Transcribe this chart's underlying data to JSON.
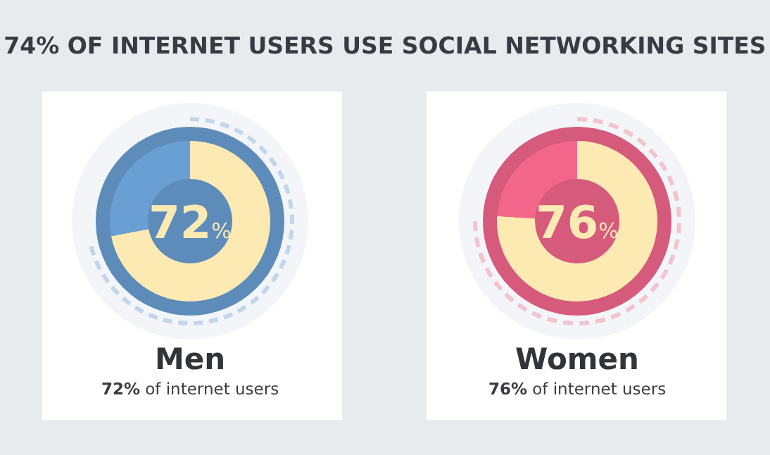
{
  "chart_data": [
    {
      "type": "other",
      "title": "74% OF INTERNET USERS USE SOCIAL NETWORKING SITES"
    },
    {
      "type": "donut",
      "title": "Men",
      "subtitle": "72% of internet users",
      "categories": [
        null,
        null
      ],
      "values": [
        72,
        28
      ],
      "colors": [
        "#fdeab3",
        "#6a9fd3"
      ],
      "value_labels": [
        "72%",
        null
      ]
    },
    {
      "type": "donut",
      "title": "Women",
      "subtitle": "76% of internet users",
      "categories": [
        null,
        null
      ],
      "values": [
        76,
        24
      ],
      "colors": [
        "#fdeab3",
        "#f3668b"
      ],
      "value_labels": [
        "76%",
        null
      ]
    }
  ]
}
